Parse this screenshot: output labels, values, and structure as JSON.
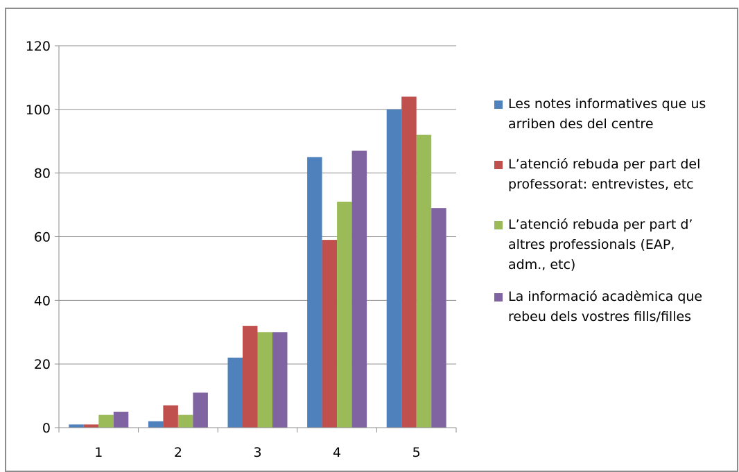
{
  "chart_data": {
    "type": "bar",
    "title": "",
    "xlabel": "",
    "ylabel": "",
    "categories": [
      "1",
      "2",
      "3",
      "4",
      "5"
    ],
    "ylim": [
      0,
      120
    ],
    "yticks": [
      "0",
      "20",
      "40",
      "60",
      "80",
      "100",
      "120"
    ],
    "grid": true,
    "legend_position": "right",
    "series": [
      {
        "name": "Les notes informatives que us\narriben  des del centre",
        "color": "#4F81BD",
        "values": [
          1,
          2,
          22,
          85,
          100
        ]
      },
      {
        "name": "L’atenció rebuda per part del\nprofessorat: entrevistes, etc",
        "color": "#C0504D",
        "values": [
          1,
          7,
          32,
          59,
          104
        ]
      },
      {
        "name": "L’atenció rebuda per part d’\naltres professionals  (EAP,\nadm., etc)",
        "color": "#9BBB59",
        "values": [
          4,
          4,
          30,
          71,
          92
        ]
      },
      {
        "name": "La informació acadèmica que\nrebeu dels vostres fills/filles",
        "color": "#8064A2",
        "values": [
          5,
          11,
          30,
          87,
          69
        ]
      }
    ]
  }
}
